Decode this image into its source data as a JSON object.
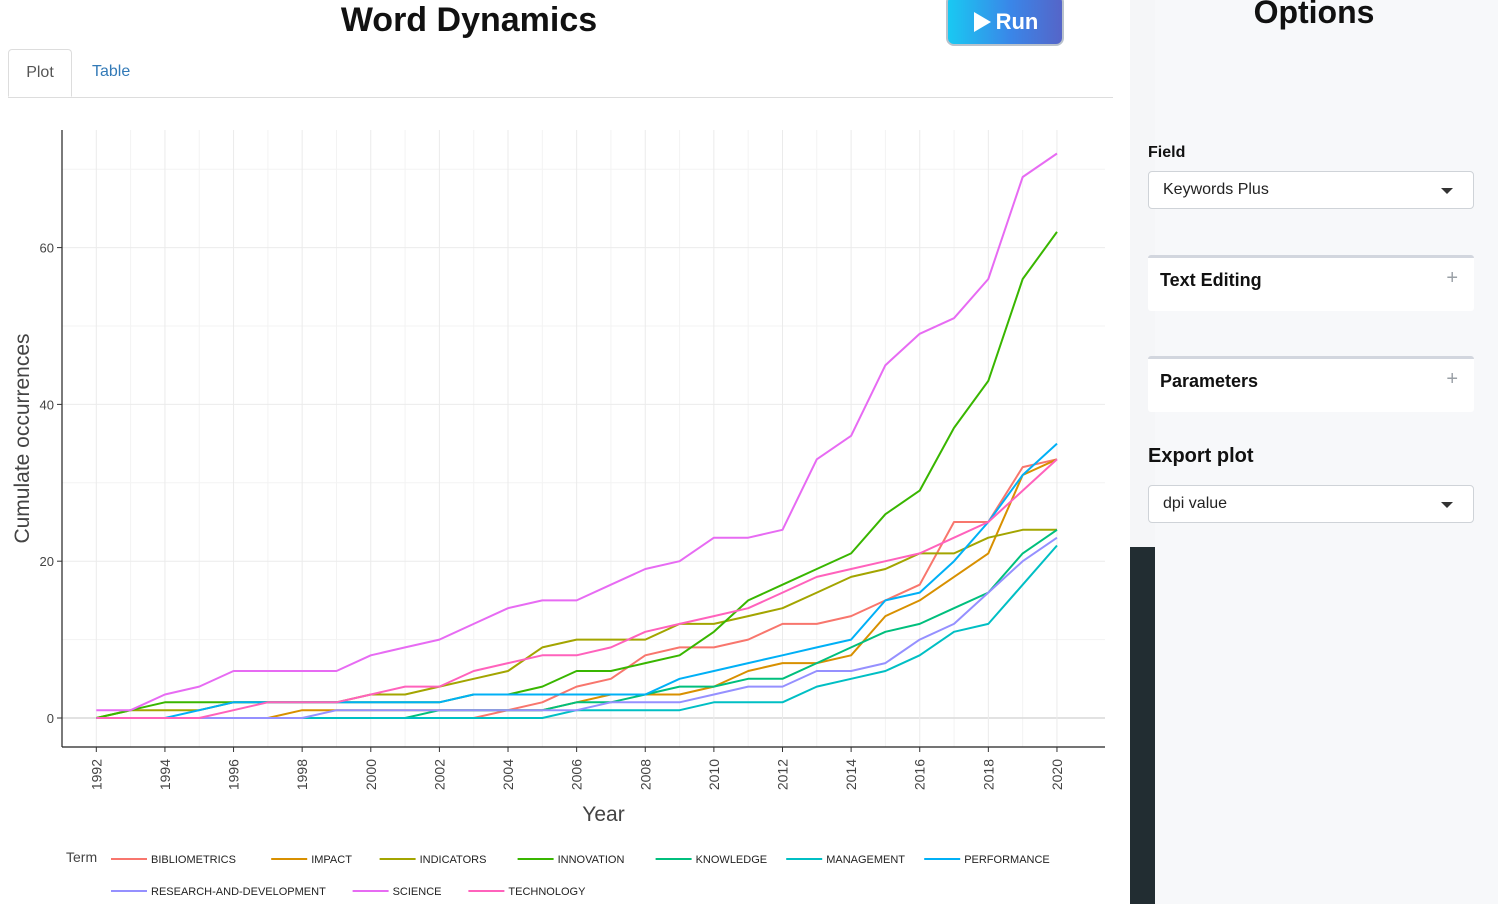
{
  "header": {
    "title": "Word Dynamics",
    "run_label": "Run"
  },
  "tabs": [
    {
      "label": "Plot",
      "active": true
    },
    {
      "label": "Table",
      "active": false
    }
  ],
  "sidebar": {
    "title": "Options",
    "field_label": "Field",
    "field_value": "Keywords Plus",
    "text_editing_label": "Text Editing",
    "parameters_label": "Parameters",
    "export_label": "Export plot",
    "dpi_value": "dpi value"
  },
  "colors": {
    "run_gradient": [
      "#19c9f2",
      "#5565c8"
    ],
    "tab_link": "#337ab7",
    "dark_bar": "#222d32"
  },
  "chart_data": {
    "type": "line",
    "xlabel": "Year",
    "ylabel": "Cumulate occurrences",
    "legend_title": "Term",
    "legend_position": "bottom",
    "grid": true,
    "xlim": [
      1991,
      2021.4
    ],
    "ylim": [
      -3.7,
      75
    ],
    "x_ticks": [
      1992,
      1994,
      1996,
      1998,
      2000,
      2002,
      2004,
      2006,
      2008,
      2010,
      2012,
      2014,
      2016,
      2018,
      2020
    ],
    "y_ticks": [
      0,
      20,
      40,
      60
    ],
    "x": [
      1992,
      1993,
      1994,
      1995,
      1996,
      1997,
      1998,
      1999,
      2000,
      2001,
      2002,
      2003,
      2004,
      2005,
      2006,
      2007,
      2008,
      2009,
      2010,
      2011,
      2012,
      2013,
      2014,
      2015,
      2016,
      2017,
      2018,
      2019,
      2020
    ],
    "series": [
      {
        "name": "BIBLIOMETRICS",
        "color": "#F8766D",
        "values": [
          0,
          0,
          0,
          0,
          0,
          0,
          0,
          0,
          0,
          0,
          0,
          0,
          1,
          2,
          4,
          5,
          8,
          9,
          9,
          10,
          12,
          12,
          13,
          15,
          17,
          25,
          25,
          32,
          33
        ]
      },
      {
        "name": "IMPACT",
        "color": "#D89000",
        "values": [
          0,
          0,
          0,
          0,
          0,
          0,
          1,
          1,
          1,
          1,
          1,
          1,
          1,
          1,
          2,
          3,
          3,
          3,
          4,
          6,
          7,
          7,
          8,
          13,
          15,
          18,
          21,
          31,
          33
        ]
      },
      {
        "name": "INDICATORS",
        "color": "#A3A500",
        "values": [
          0,
          1,
          1,
          1,
          2,
          2,
          2,
          2,
          3,
          3,
          4,
          5,
          6,
          9,
          10,
          10,
          10,
          12,
          12,
          13,
          14,
          16,
          18,
          19,
          21,
          21,
          23,
          24,
          24
        ]
      },
      {
        "name": "INNOVATION",
        "color": "#39B600",
        "values": [
          0,
          1,
          2,
          2,
          2,
          2,
          2,
          2,
          2,
          2,
          2,
          3,
          3,
          4,
          6,
          6,
          7,
          8,
          11,
          15,
          17,
          19,
          21,
          26,
          29,
          37,
          43,
          56,
          62
        ]
      },
      {
        "name": "KNOWLEDGE",
        "color": "#00BF7D",
        "values": [
          0,
          0,
          0,
          0,
          0,
          0,
          0,
          0,
          0,
          0,
          1,
          1,
          1,
          1,
          2,
          2,
          3,
          4,
          4,
          5,
          5,
          7,
          9,
          11,
          12,
          14,
          16,
          21,
          24
        ]
      },
      {
        "name": "MANAGEMENT",
        "color": "#00BFC4",
        "values": [
          0,
          0,
          0,
          0,
          0,
          0,
          0,
          0,
          0,
          0,
          0,
          0,
          0,
          0,
          1,
          1,
          1,
          1,
          2,
          2,
          2,
          4,
          5,
          6,
          8,
          11,
          12,
          17,
          22
        ]
      },
      {
        "name": "PERFORMANCE",
        "color": "#00B0F6",
        "values": [
          0,
          0,
          0,
          1,
          2,
          2,
          2,
          2,
          2,
          2,
          2,
          3,
          3,
          3,
          3,
          3,
          3,
          5,
          6,
          7,
          8,
          9,
          10,
          15,
          16,
          20,
          25,
          31,
          35
        ]
      },
      {
        "name": "RESEARCH-AND-DEVELOPMENT",
        "color": "#9590FF",
        "values": [
          0,
          0,
          0,
          0,
          0,
          0,
          0,
          1,
          1,
          1,
          1,
          1,
          1,
          1,
          1,
          2,
          2,
          2,
          3,
          4,
          4,
          6,
          6,
          7,
          10,
          12,
          16,
          20,
          23
        ]
      },
      {
        "name": "SCIENCE",
        "color": "#E76BF3",
        "values": [
          1,
          1,
          3,
          4,
          6,
          6,
          6,
          6,
          8,
          9,
          10,
          12,
          14,
          15,
          15,
          17,
          19,
          20,
          23,
          23,
          24,
          33,
          36,
          45,
          49,
          51,
          56,
          69,
          72
        ]
      },
      {
        "name": "TECHNOLOGY",
        "color": "#FF62BC",
        "values": [
          0,
          0,
          0,
          0,
          1,
          2,
          2,
          2,
          3,
          4,
          4,
          6,
          7,
          8,
          8,
          9,
          11,
          12,
          13,
          14,
          16,
          18,
          19,
          20,
          21,
          23,
          25,
          29,
          33
        ]
      }
    ]
  }
}
